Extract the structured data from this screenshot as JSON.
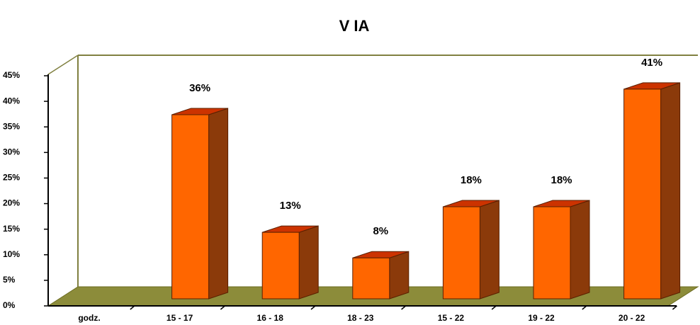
{
  "chart_data": {
    "type": "bar",
    "title": "V IA",
    "categories": [
      "godz.",
      "15 - 17",
      "16 - 18",
      "18 - 23",
      "15 - 22",
      "19 - 22",
      "20 - 22"
    ],
    "values": [
      null,
      36,
      13,
      8,
      18,
      18,
      41
    ],
    "value_labels": [
      null,
      "36%",
      "13%",
      "8%",
      "18%",
      "18%",
      "41%"
    ],
    "color": "#ff6600",
    "ylim": [
      0,
      45
    ],
    "yticks": [
      {
        "value": 0,
        "label": "0%"
      },
      {
        "value": 5,
        "label": "5%"
      },
      {
        "value": 10,
        "label": "10%"
      },
      {
        "value": 15,
        "label": "15%"
      },
      {
        "value": 20,
        "label": "20%"
      },
      {
        "value": 25,
        "label": "25%"
      },
      {
        "value": 30,
        "label": "30%"
      },
      {
        "value": 35,
        "label": "35%"
      },
      {
        "value": 40,
        "label": "40%"
      },
      {
        "value": 45,
        "label": "45%"
      }
    ]
  }
}
